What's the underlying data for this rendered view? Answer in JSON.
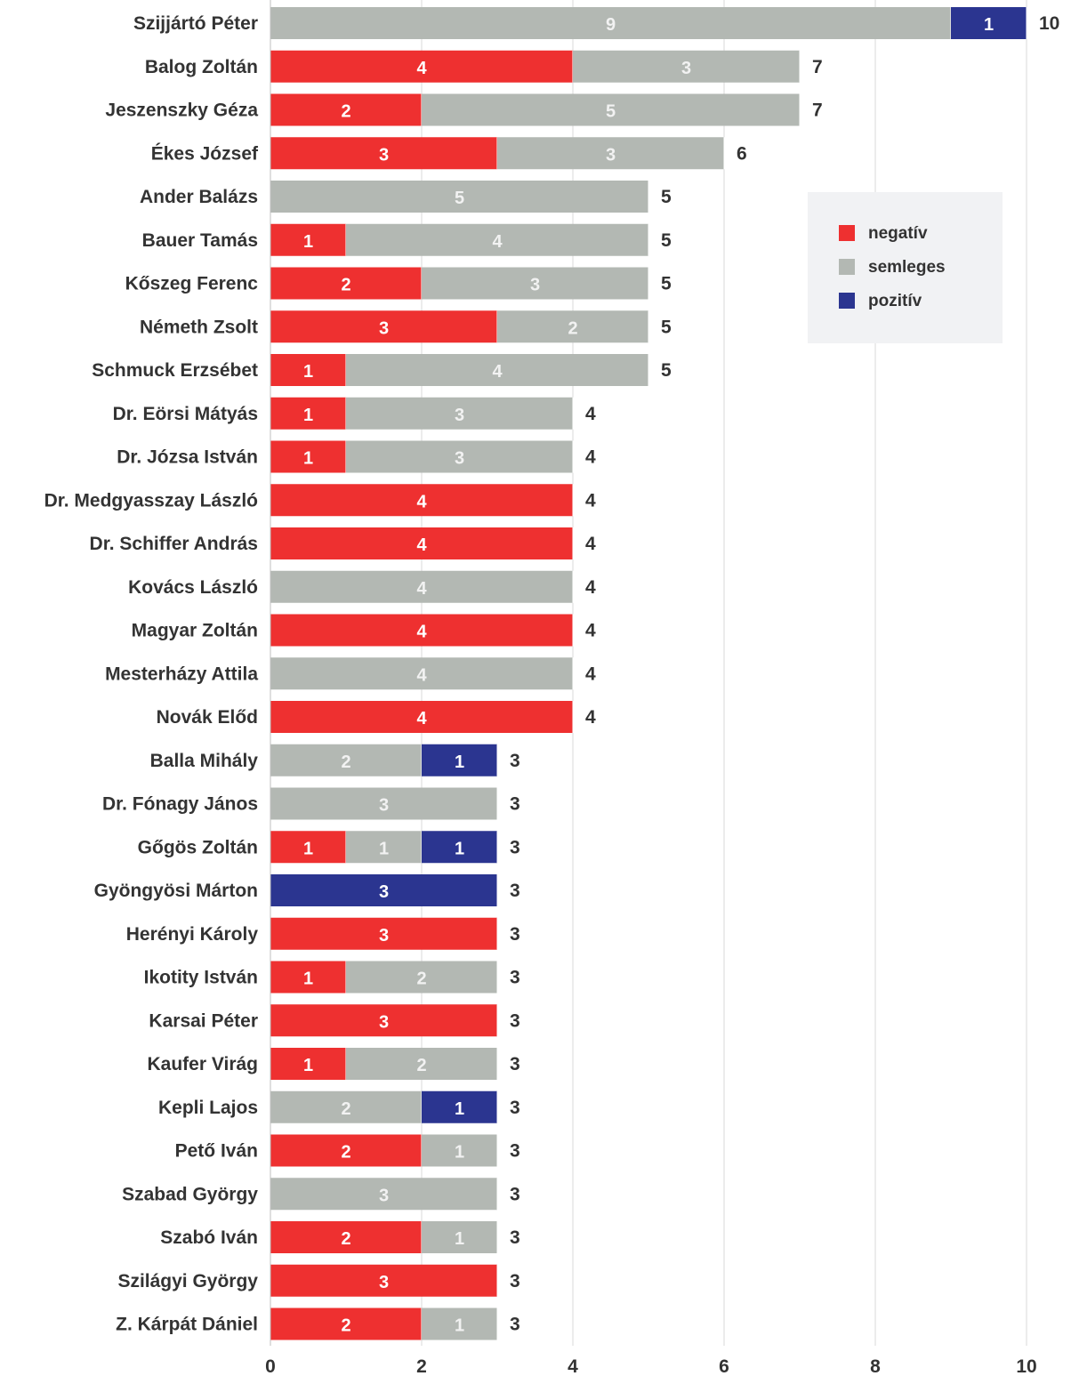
{
  "chart_data": {
    "type": "bar",
    "orientation": "horizontal",
    "stacked": true,
    "title": "",
    "xlabel": "",
    "ylabel": "",
    "xlim": [
      0,
      10
    ],
    "xticks": [
      0,
      2,
      4,
      6,
      8,
      10
    ],
    "grid": "vertical",
    "legend_position": "right",
    "categories": [
      "Szijjártó Péter",
      "Balog Zoltán",
      "Jeszenszky Géza",
      "Ékes József",
      "Ander Balázs",
      "Bauer Tamás",
      "Kőszeg Ferenc",
      "Németh Zsolt",
      "Schmuck Erzsébet",
      "Dr. Eörsi Mátyás",
      "Dr. Józsa István",
      "Dr. Medgyasszay László",
      "Dr. Schiffer András",
      "Kovács László",
      "Magyar Zoltán",
      "Mesterházy Attila",
      "Novák Előd",
      "Balla Mihály",
      "Dr. Fónagy János",
      "Gőgös Zoltán",
      "Gyöngyösi Márton",
      "Herényi Károly",
      "Ikotity István",
      "Karsai Péter",
      "Kaufer Virág",
      "Kepli Lajos",
      "Pető Iván",
      "Szabad György",
      "Szabó Iván",
      "Szilágyi György",
      "Z. Kárpát Dániel"
    ],
    "series": [
      {
        "name": "negatív",
        "color": "#ee3030",
        "label_color": "#ffffff",
        "values": [
          0,
          4,
          2,
          3,
          0,
          1,
          2,
          3,
          1,
          1,
          1,
          4,
          4,
          0,
          4,
          0,
          4,
          0,
          0,
          1,
          0,
          3,
          1,
          3,
          1,
          0,
          2,
          0,
          2,
          3,
          2
        ]
      },
      {
        "name": "semleges",
        "color": "#b3b8b3",
        "label_color": "#f2f2f2",
        "values": [
          9,
          3,
          5,
          3,
          5,
          4,
          3,
          2,
          4,
          3,
          3,
          0,
          0,
          4,
          0,
          4,
          0,
          2,
          3,
          1,
          0,
          0,
          2,
          0,
          2,
          2,
          1,
          3,
          1,
          0,
          1
        ]
      },
      {
        "name": "pozitív",
        "color": "#2b3590",
        "label_color": "#ffffff",
        "values": [
          1,
          0,
          0,
          0,
          0,
          0,
          0,
          0,
          0,
          0,
          0,
          0,
          0,
          0,
          0,
          0,
          0,
          1,
          0,
          1,
          3,
          0,
          0,
          0,
          0,
          1,
          0,
          0,
          0,
          0,
          0
        ]
      }
    ],
    "totals": [
      10,
      7,
      7,
      6,
      5,
      5,
      5,
      5,
      5,
      4,
      4,
      4,
      4,
      4,
      4,
      4,
      4,
      3,
      3,
      3,
      3,
      3,
      3,
      3,
      3,
      3,
      3,
      3,
      3,
      3,
      3
    ]
  }
}
